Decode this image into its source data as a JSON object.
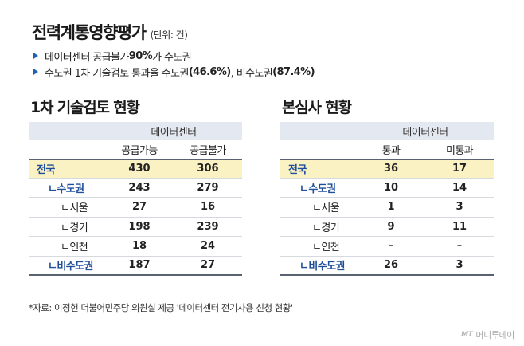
{
  "header": {
    "title": "전력계통영향평가",
    "unit": "(단위: 건)"
  },
  "bullets": [
    {
      "pre": "데이터센터 공급불가 ",
      "bold": "90%",
      "post": "가 수도권"
    },
    {
      "pre": "수도권 1차 기술검토 통과율 수도권",
      "bold": "(46.6%)",
      "post": ", 비수도권",
      "bold2": "(87.4%)"
    }
  ],
  "left_panel": {
    "title": "1차 기술검토 현황",
    "group_header": "데이터센터",
    "columns": [
      "공급가능",
      "공급불가"
    ],
    "rows": [
      {
        "label": "전국",
        "values": [
          "430",
          "306"
        ]
      },
      {
        "label": "ㄴ수도권",
        "values": [
          "243",
          "279"
        ]
      },
      {
        "label": "ㄴ서울",
        "values": [
          "27",
          "16"
        ]
      },
      {
        "label": "ㄴ경기",
        "values": [
          "198",
          "239"
        ]
      },
      {
        "label": "ㄴ인천",
        "values": [
          "18",
          "24"
        ]
      },
      {
        "label": "ㄴ비수도권",
        "values": [
          "187",
          "27"
        ]
      }
    ]
  },
  "right_panel": {
    "title": "본심사 현황",
    "group_header": "데이터센터",
    "columns": [
      "통과",
      "미통과"
    ],
    "rows": [
      {
        "label": "전국",
        "values": [
          "36",
          "17"
        ]
      },
      {
        "label": "ㄴ수도권",
        "values": [
          "10",
          "14"
        ]
      },
      {
        "label": "ㄴ서울",
        "values": [
          "1",
          "3"
        ]
      },
      {
        "label": "ㄴ경기",
        "values": [
          "9",
          "11"
        ]
      },
      {
        "label": "ㄴ인천",
        "values": [
          "–",
          "–"
        ]
      },
      {
        "label": "ㄴ비수도권",
        "values": [
          "26",
          "3"
        ]
      }
    ]
  },
  "source": "*자료: 이정헌 더불어민주당 의원실 제공 '데이터센터 전기사용 신청 현황'",
  "logo": {
    "mark": "MT",
    "text": "머니투데이"
  }
}
